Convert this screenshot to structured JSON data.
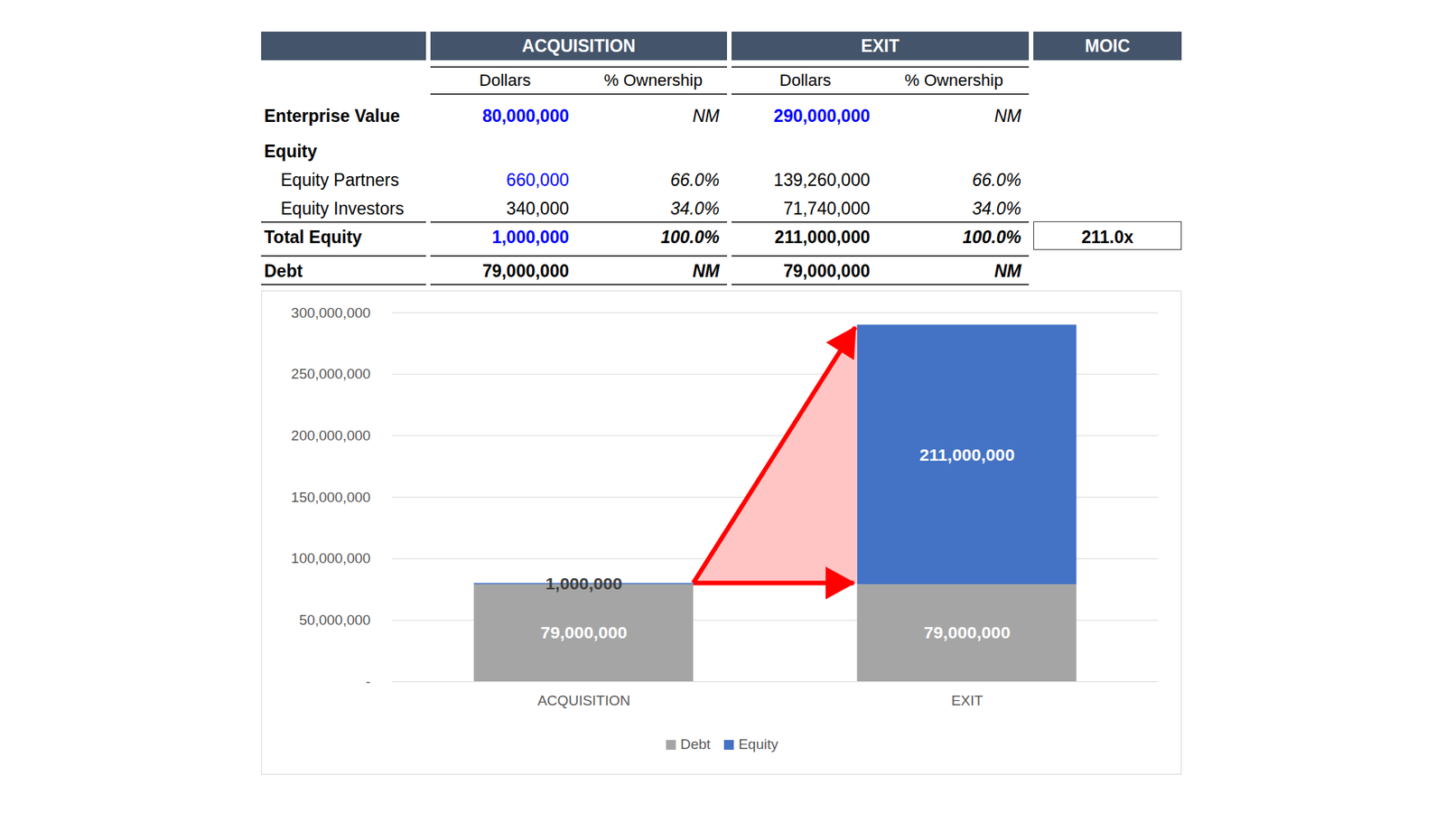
{
  "table": {
    "header": [
      "ACQUISITION",
      "EXIT",
      "MOIC"
    ],
    "subheader": [
      "Dollars",
      "% Ownership",
      "Dollars",
      "% Ownership"
    ],
    "rows": [
      {
        "label": "Enterprise Value",
        "cells": [
          "80,000,000",
          "NM",
          "290,000,000",
          "NM"
        ]
      },
      {
        "label": "Equity",
        "cells": []
      },
      {
        "label": "Equity Partners",
        "cells": [
          "660,000",
          "66.0%",
          "139,260,000",
          "66.0%"
        ]
      },
      {
        "label": "Equity Investors",
        "cells": [
          "340,000",
          "34.0%",
          "71,740,000",
          "34.0%"
        ]
      },
      {
        "label": "Total Equity",
        "cells": [
          "1,000,000",
          "100.0%",
          "211,000,000",
          "100.0%",
          "211.0x"
        ]
      },
      {
        "label": "Debt",
        "cells": [
          "79,000,000",
          "NM",
          "79,000,000",
          "NM"
        ]
      }
    ]
  },
  "chart_data": {
    "type": "bar",
    "stacked": true,
    "categories": [
      "ACQUISITION",
      "EXIT"
    ],
    "series": [
      {
        "name": "Debt",
        "color": "#a5a5a5",
        "values": [
          79000000,
          79000000
        ],
        "value_labels": [
          "79,000,000",
          "79,000,000"
        ]
      },
      {
        "name": "Equity",
        "color": "#4472c4",
        "values": [
          1000000,
          211000000
        ],
        "value_labels": [
          "1,000,000",
          "211,000,000"
        ]
      }
    ],
    "ylim": [
      0,
      300000000
    ],
    "yticks": [
      {
        "value": 0,
        "label": "-"
      },
      {
        "value": 50000000,
        "label": "50,000,000"
      },
      {
        "value": 100000000,
        "label": "100,000,000"
      },
      {
        "value": 150000000,
        "label": "150,000,000"
      },
      {
        "value": 200000000,
        "label": "200,000,000"
      },
      {
        "value": 250000000,
        "label": "250,000,000"
      },
      {
        "value": 300000000,
        "label": "300,000,000"
      }
    ],
    "grid": true,
    "legend": "bottom",
    "data_labels": true
  }
}
